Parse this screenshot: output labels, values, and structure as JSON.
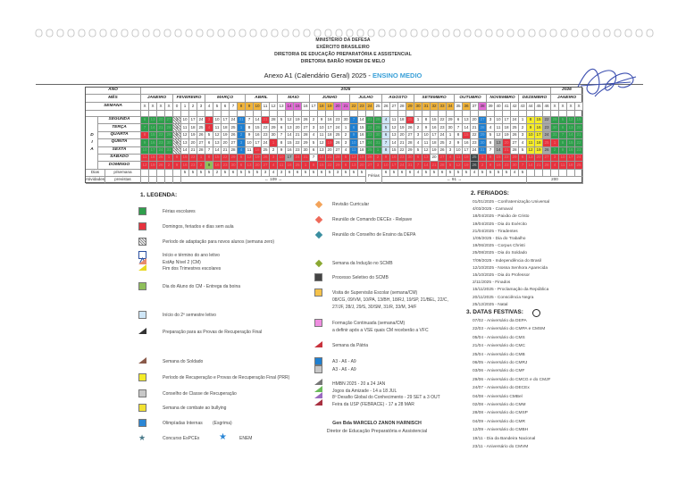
{
  "header": {
    "lines": [
      "MINISTÉRIO DA DEFESA",
      "EXÉRCITO BRASILEIRO",
      "DIRETORIA DE EDUCAÇÃO PREPARATÓRIA E ASSISTENCIAL",
      "DIRETORIA BARÃO HOMEM DE MELO"
    ],
    "title_prefix": "Anexo A1 (Calendário Geral) 2025 - ",
    "title_accent": "ENSINO MEDIO"
  },
  "colors": {
    "ferias": "#2f9e4c",
    "feriado": "#e6323e",
    "a3_a6_a9": "#1f7fd0",
    "prr": "#f4ec28",
    "accent": "#3aa0d8"
  },
  "calendar": {
    "row_labels": {
      "ano": "ANO",
      "mes": "MÊS",
      "semana": "SEMANA",
      "dias": "Dias",
      "dias_sub": "p/semana",
      "atividades": "Atividades",
      "atividades_sub": "previstas"
    },
    "side_letters": [
      "D",
      "I",
      "A"
    ],
    "years": [
      {
        "label": "2025",
        "span": 51
      },
      {
        "label": "2026",
        "span": 4
      }
    ],
    "months": [
      {
        "label": "JANEIRO",
        "span": 4
      },
      {
        "label": "FEVEREIRO",
        "span": 4
      },
      {
        "label": "MARÇO",
        "span": 5
      },
      {
        "label": "ABRIL",
        "span": 4
      },
      {
        "label": "MAIO",
        "span": 4
      },
      {
        "label": "JUNHO",
        "span": 5
      },
      {
        "label": "JULHO",
        "span": 4
      },
      {
        "label": "AGOSTO",
        "span": 4
      },
      {
        "label": "SETEMBRO",
        "span": 5
      },
      {
        "label": "OUTUBRO",
        "span": 4
      },
      {
        "label": "NOVEMBRO",
        "span": 4
      },
      {
        "label": "DEZEMBRO",
        "span": 4
      },
      {
        "label": "JANEIRO",
        "span": 4
      }
    ],
    "weeks": "X X X X 0 1 2 3 4 5 6 7 8 9 10 11 12 13 14 15 16 17 18 19 20 21 22 23 24 25 26 27 28 29 30 31 32 33 34 35 36 37 38 39 40 41 42 43 44 45 46 X X X X",
    "week_fills": "wwwwwwwwwwwwooowwwppwwooppooowwwwoooooowowpwwwwwwwwwwww",
    "days": [
      {
        "label": "SEGUNDA",
        "dates": "6 13 20 27 3 10 17 24 3 10 17 24 31 7 14 21 28 5 12 19 26 2 9 16 23 30 7 14 21 28 4 11 18 25 1 8 15 22 29 6 13 20 27 3 10 17 24 1 8 15 22 29 5 12 19",
        "fills": "gggghwwwrwwwbwwrwwwwwwwwwwbwgglwwrwwwwwwwwbwwwwwyysgggg"
      },
      {
        "label": "TERÇA",
        "dates": "7 14 21 28 4 11 18 25 4 11 18 25 1 8 15 22 29 6 13 20 27 3 10 17 24 1 8 15 22 29 5 12 19 26 2 9 16 23 30 7 14 21 28 4 11 18 25 2 9 16 23 30 6 13 20",
        "fills": "gggghwwwrwwwbwwwwwwwwwwwwwbwgglwwwwwwwwwwwbwwwwwyysgggg"
      },
      {
        "label": "QUARTA",
        "dates": "8 15 22 29 5 12 19 26 5 12 19 26 2 9 16 23 30 7 14 21 28 4 11 18 25 2 9 16 23 30 6 13 20 27 3 10 17 24 1 8 15 22 29 5 12 19 26 3 10 17 24 31 7 14 21",
        "fills": "rggghwwwwwwwbwwwwwwwwwwwwwbwgglwwwwwwwwwrwbwwwwwyysgggg"
      },
      {
        "label": "QUINTA",
        "dates": "9 16 23 30 6 13 20 27 6 13 20 27 3 10 17 24 1 8 15 22 29 5 12 19 26 3 10 17 24 31 7 14 21 28 4 11 18 25 2 9 16 23 30 6 13 20 27 4 11 18 25 1 8 15 22",
        "fills": "gggghwwwwwwwbwwwrwwwwwwrwwbwgglwwwwwwwwwwwbwsrwwyyrrggg"
      },
      {
        "label": "SEXTA",
        "dates": "10 17 24 31 7 14 21 28 7 14 21 28 4 11 18 25 2 9 16 23 30 6 13 20 27 4 11 18 25 1 8 15 22 29 5 12 19 26 3 10 17 24 31 7 14 21 28 5 12 19 26 2 9 16 23",
        "fills": "gggghwwwwwwwbwrwwwwwwwwwwwbwgglwwwwwwwwwwwbwsrwwyysgggg"
      },
      {
        "label": "SÁBADO",
        "dates": "11 18 25 1 8 15 22 1 8 15 22 29 5 12 19 26 3 10 17 24 31 7 14 21 28 5 12 19 26 2 9 16 23 30 6 13 20 27 4 11 18 25 1 8 15 22 29 6 13 20 27 3 10 17 24",
        "fills": "rrrrrrrrrrrrrrrrrrsrrwrrrrrrrrrrrrrrwrrrrdrrrrrrrrrrrrr"
      },
      {
        "label": "DOMINGO",
        "dates": "12 19 26 2 9 16 23 2 9 16 23 30 6 13 20 27 4 11 18 25 1 8 15 22 29 6 13 20 27 3 10 17 24 31 7 14 21 28 5 12 19 26 2 9 16 23 30 7 14 21 28 4 11 18 25",
        "fills": "rrrrrrrrarrrrrrrrrrrrrrrrrrrrrrrrrrrrrrrrdrrrrrrrrrrrrr"
      }
    ],
    "dias_letivos": {
      "first": [
        5,
        5,
        5,
        5,
        2,
        5,
        6,
        5,
        5,
        5,
        3,
        4,
        3,
        6,
        6,
        5,
        5,
        6,
        5,
        3,
        5,
        5,
        5
      ],
      "vacation_label": "Férias",
      "second": [
        6,
        5,
        6,
        6,
        4,
        5,
        5,
        6,
        5,
        5,
        5,
        4,
        5,
        5,
        5,
        5,
        4,
        5
      ]
    },
    "totals": {
      "first": "109",
      "second": "91",
      "year": "200"
    }
  },
  "legend": {
    "title": "1. LEGENDA:",
    "left": [
      {
        "icon": "green-square-icon",
        "text": "Férias escolares"
      },
      {
        "icon": "red-square-icon",
        "text": "Domingos, feriados e dias sem aula"
      },
      {
        "icon": "hatched-square-icon",
        "text": "Período de adaptação para novos alunos (semana zero)"
      },
      {
        "icon": "blue-triangle-box-icon",
        "text": "Início e término do ano letivo"
      },
      {
        "icon": "salmon-flag-icon",
        "text": "EstAp Nível 2 (CM)"
      },
      {
        "icon": "yellow-flag-icon",
        "text": "Fim dos Trimestres escolares"
      },
      {
        "icon": "olive-square-icon",
        "text": "Dia do Aluno do CM - Entrega da boina"
      },
      {
        "icon": "light-blue-square-icon",
        "text": "Início do 2º semestre letivo"
      },
      {
        "icon": "dark-flag-icon",
        "text": "Preparação para as Provas de Recuperação Final"
      },
      {
        "icon": "brown-flag-icon",
        "text": "Semana do Soldado"
      },
      {
        "icon": "yellow-square-icon",
        "text": "Período de Recuperação e Provas de Recuperação Final (PRR)"
      },
      {
        "icon": "gray-square-icon",
        "text": "Conselho de Classe de Recuperação"
      },
      {
        "icon": "yellow-folder-icon",
        "text": "Semana de combate ao bullying"
      },
      {
        "icon": "blue-folder-icon",
        "text": "Olimpíadas Internas",
        "extra": "(Esgrima)"
      },
      {
        "icon": "green-star-icon",
        "text": "Concurso EsPCEx",
        "extra": "ENEM"
      }
    ],
    "middle": [
      {
        "icon": "orange-diamond-icon",
        "text": "Revisão Curricular"
      },
      {
        "icon": "red-diamond-icon",
        "text": "Reunião de Comando DECEx - Relpave"
      },
      {
        "icon": "teal-diamond-icon",
        "text": "Reunião do Conselho de Ensino da DEPA"
      },
      {
        "icon": "olive-diamond-icon",
        "text": "Semana da Indução no SCMB"
      },
      {
        "icon": "dark-gray-square-icon",
        "text": "Processo Seletivo do SCMB"
      },
      {
        "icon": "orange-square-icon",
        "text": "Visita de Supervisão Escolar (semana/CM)",
        "lines": [
          "08/CG, 09/VM, 10/PA, 13/BH, 18/RJ, 19/SP, 21/BEL, 22/C,",
          "27/JF, 28/J, 29/S, 30/SM, 31/R, 33/M, 34/F"
        ]
      },
      {
        "icon": "pink-square-icon",
        "text": "Formação Continuada (semana/CM)",
        "lines": [
          "a definir após a VSE quais CM receberão a VFC"
        ]
      },
      {
        "icon": "red-flag-icon",
        "text": "Semana da Pátria"
      },
      {
        "icon": "blue-square-icon",
        "text": "A3 - A6 - A9"
      },
      {
        "icon": "gray-square-icon",
        "text": "A3 - A6 - A9"
      },
      {
        "icon": "white-flag-icon",
        "text": "HMBN 2025 - 20 a 24 JAN"
      },
      {
        "icon": "green-flag-icon",
        "text": "Jogos da Amizade - 14 a 18 JUL"
      },
      {
        "icon": "purple-flag-icon",
        "text": "8º Desafio Global do Conhecimento - 29 SET a 3 OUT"
      },
      {
        "icon": "maroon-flag-icon",
        "text": "Feira da USP (FEBRACE) - 17 a 28 MAR"
      }
    ],
    "signatory": {
      "name": "Gen Bda MARCELO ZANON HARNISCH",
      "role": "Diretor de Educação Preparatória e Assistencial"
    }
  },
  "feriados": {
    "title": "2. FERIADOS:",
    "items": [
      "01/01/2025 - Confraternização Universal",
      "4/03/2025 - Carnaval",
      "18/04/2025 - Paixão de Cristo",
      "19/04/2025 - Dia do Exército",
      "21/04/2025 - Tiradentes",
      "1/05/2025 - Dia do Trabalho",
      "19/06/2025 - Corpus Christi",
      "25/08/2025 - Dia do Soldado",
      "7/09/2025 - Independência do Brasil",
      "12/10/2025 - Nossa Senhora Aparecida",
      "15/10/2025 - Dia do Professor",
      "2/11/2025 - Finados",
      "15/11/2025 - Proclamação da República",
      "20/11/2025 - Consciência Negra",
      "25/12/2025 - Natal"
    ]
  },
  "datas_festivas": {
    "title": "3. DATAS FESTIVAS:",
    "items": [
      "07/02 - Aniversário da DEPA",
      "22/03 - Aniversário do CMPA e CMSM",
      "05/04 - Aniversário do CMS",
      "21/04 - Aniversário do CMC",
      "25/04 - Aniversário do CMB",
      "06/05 - Aniversário do CMRJ",
      "03/06 - Aniversário do CMF",
      "29/06 - Aniversário do CMCG e do CMJF",
      "24/07 - Aniversário do DECEx",
      "04/08 - Aniversário CMBel",
      "02/08 - Aniversário do CMM",
      "28/08 - Aniversário do CMSP",
      "04/09 - Aniversário do CMR",
      "12/09 - Aniversário do CMBH",
      "19/11 - Dia da Bandeira Nacional",
      "23/11 - Aniversário do CMVM"
    ]
  }
}
